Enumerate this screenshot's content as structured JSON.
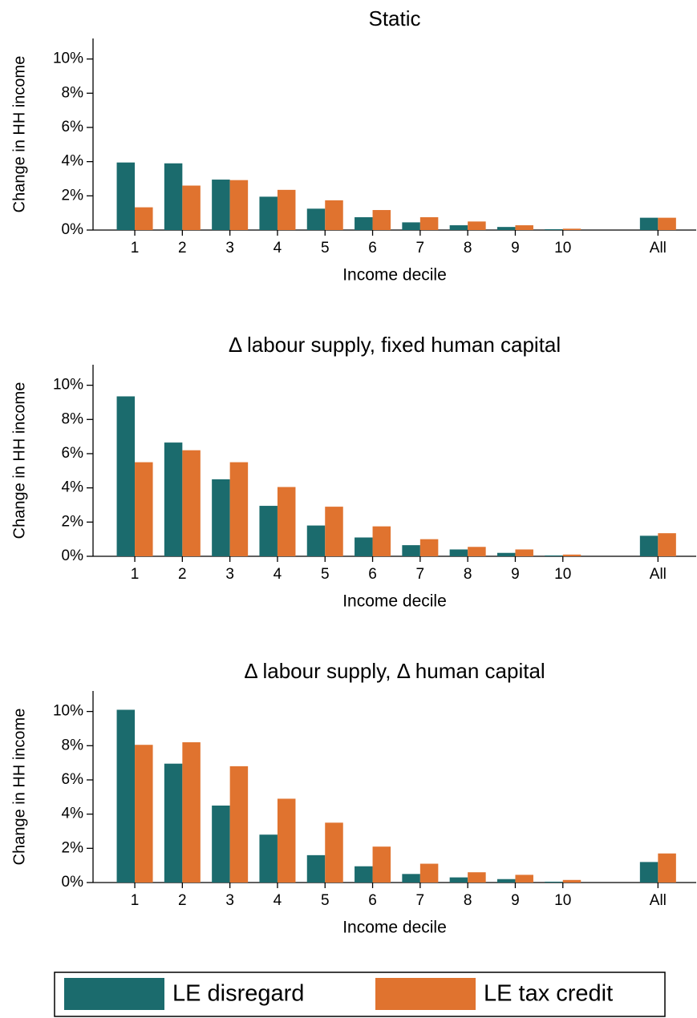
{
  "chart_data": [
    {
      "type": "bar",
      "title": "Static",
      "xlabel": "Income decile",
      "ylabel": "Change in HH income",
      "categories": [
        "1",
        "2",
        "3",
        "4",
        "5",
        "6",
        "7",
        "8",
        "9",
        "10",
        null,
        "All"
      ],
      "series": [
        {
          "name": "LE disregard",
          "color": "#1b6b6d",
          "values": [
            3.95,
            3.9,
            2.95,
            1.95,
            1.25,
            0.75,
            0.45,
            0.28,
            0.18,
            0.05,
            null,
            0.72
          ]
        },
        {
          "name": "LE tax credit",
          "color": "#e0732f",
          "values": [
            1.33,
            2.6,
            2.92,
            2.35,
            1.74,
            1.17,
            0.75,
            0.5,
            0.28,
            0.08,
            null,
            0.72
          ]
        }
      ],
      "ylim": [
        0,
        11.2
      ],
      "yticks": [
        {
          "value": 0,
          "label": "0%"
        },
        {
          "value": 2,
          "label": "2%"
        },
        {
          "value": 4,
          "label": "4%"
        },
        {
          "value": 6,
          "label": "6%"
        },
        {
          "value": 8,
          "label": "8%"
        },
        {
          "value": 10,
          "label": "10%"
        }
      ]
    },
    {
      "type": "bar",
      "title": "Δ labour supply, fixed human capital",
      "xlabel": "Income decile",
      "ylabel": "Change in HH income",
      "categories": [
        "1",
        "2",
        "3",
        "4",
        "5",
        "6",
        "7",
        "8",
        "9",
        "10",
        null,
        "All"
      ],
      "series": [
        {
          "name": "LE disregard",
          "color": "#1b6b6d",
          "values": [
            9.35,
            6.65,
            4.5,
            2.95,
            1.8,
            1.1,
            0.65,
            0.4,
            0.2,
            0.05,
            null,
            1.2
          ]
        },
        {
          "name": "LE tax credit",
          "color": "#e0732f",
          "values": [
            5.5,
            6.2,
            5.5,
            4.05,
            2.9,
            1.75,
            1.0,
            0.55,
            0.4,
            0.1,
            null,
            1.35
          ]
        }
      ],
      "ylim": [
        0,
        11.2
      ],
      "yticks": [
        {
          "value": 0,
          "label": "0%"
        },
        {
          "value": 2,
          "label": "2%"
        },
        {
          "value": 4,
          "label": "4%"
        },
        {
          "value": 6,
          "label": "6%"
        },
        {
          "value": 8,
          "label": "8%"
        },
        {
          "value": 10,
          "label": "10%"
        }
      ]
    },
    {
      "type": "bar",
      "title": "Δ labour supply, Δ human capital",
      "xlabel": "Income decile",
      "ylabel": "Change in HH income",
      "categories": [
        "1",
        "2",
        "3",
        "4",
        "5",
        "6",
        "7",
        "8",
        "9",
        "10",
        null,
        "All"
      ],
      "series": [
        {
          "name": "LE disregard",
          "color": "#1b6b6d",
          "values": [
            10.1,
            6.95,
            4.5,
            2.8,
            1.6,
            0.95,
            0.5,
            0.3,
            0.2,
            0.05,
            null,
            1.2
          ]
        },
        {
          "name": "LE tax credit",
          "color": "#e0732f",
          "values": [
            8.05,
            8.2,
            6.8,
            4.9,
            3.5,
            2.1,
            1.1,
            0.6,
            0.45,
            0.15,
            null,
            1.7
          ]
        }
      ],
      "ylim": [
        0,
        11.2
      ],
      "yticks": [
        {
          "value": 0,
          "label": "0%"
        },
        {
          "value": 2,
          "label": "2%"
        },
        {
          "value": 4,
          "label": "4%"
        },
        {
          "value": 6,
          "label": "6%"
        },
        {
          "value": 8,
          "label": "8%"
        },
        {
          "value": 10,
          "label": "10%"
        }
      ]
    }
  ]
}
